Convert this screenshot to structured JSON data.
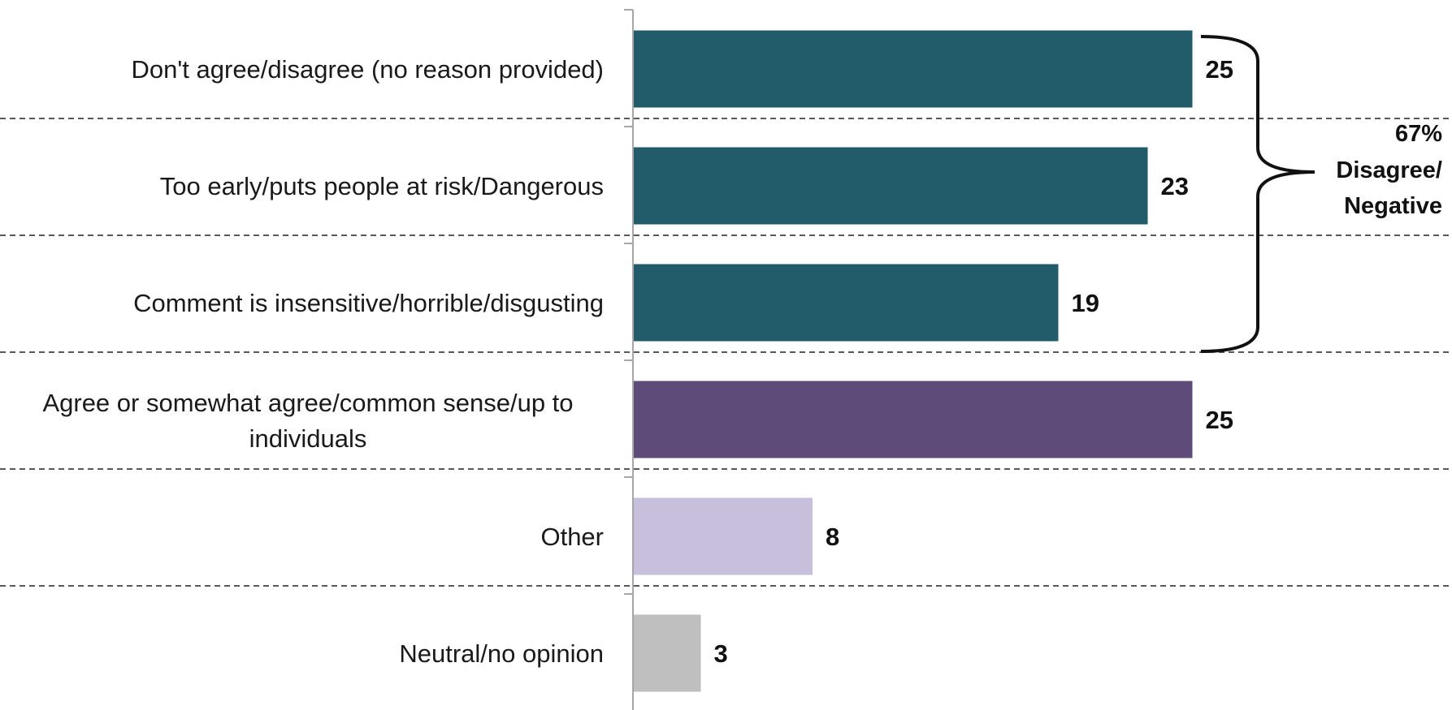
{
  "chart_data": {
    "type": "bar",
    "orientation": "horizontal",
    "categories": [
      "Don't agree/disagree (no reason provided)",
      "Too early/puts people at risk/Dangerous",
      "Comment is insensitive/horrible/disgusting",
      "Agree or somewhat agree/common sense/up to individuals",
      "Other",
      "Neutral/no opinion"
    ],
    "category_lines": [
      [
        "Don't agree/disagree (no reason provided)"
      ],
      [
        "Too early/puts people at risk/Dangerous"
      ],
      [
        "Comment is insensitive/horrible/disgusting"
      ],
      [
        "Agree or somewhat agree/common sense/up to",
        "individuals"
      ],
      [
        "Other"
      ],
      [
        "Neutral/no opinion"
      ]
    ],
    "values": [
      25,
      23,
      19,
      25,
      8,
      3
    ],
    "value_labels": [
      "25",
      "23",
      "19",
      "25",
      "8",
      "3"
    ],
    "colors": [
      "#225b6a",
      "#225b6a",
      "#225b6a",
      "#5f4b7a",
      "#c8bfdc",
      "#bfbfbf"
    ],
    "xlim": [
      0,
      28
    ],
    "title": "",
    "xlabel": "",
    "ylabel": "",
    "grid": false,
    "separator_lines": "dashed",
    "annotation": {
      "brace_covers": [
        0,
        1,
        2
      ],
      "lines": [
        "67%",
        "Disagree/",
        "Negative"
      ]
    }
  }
}
